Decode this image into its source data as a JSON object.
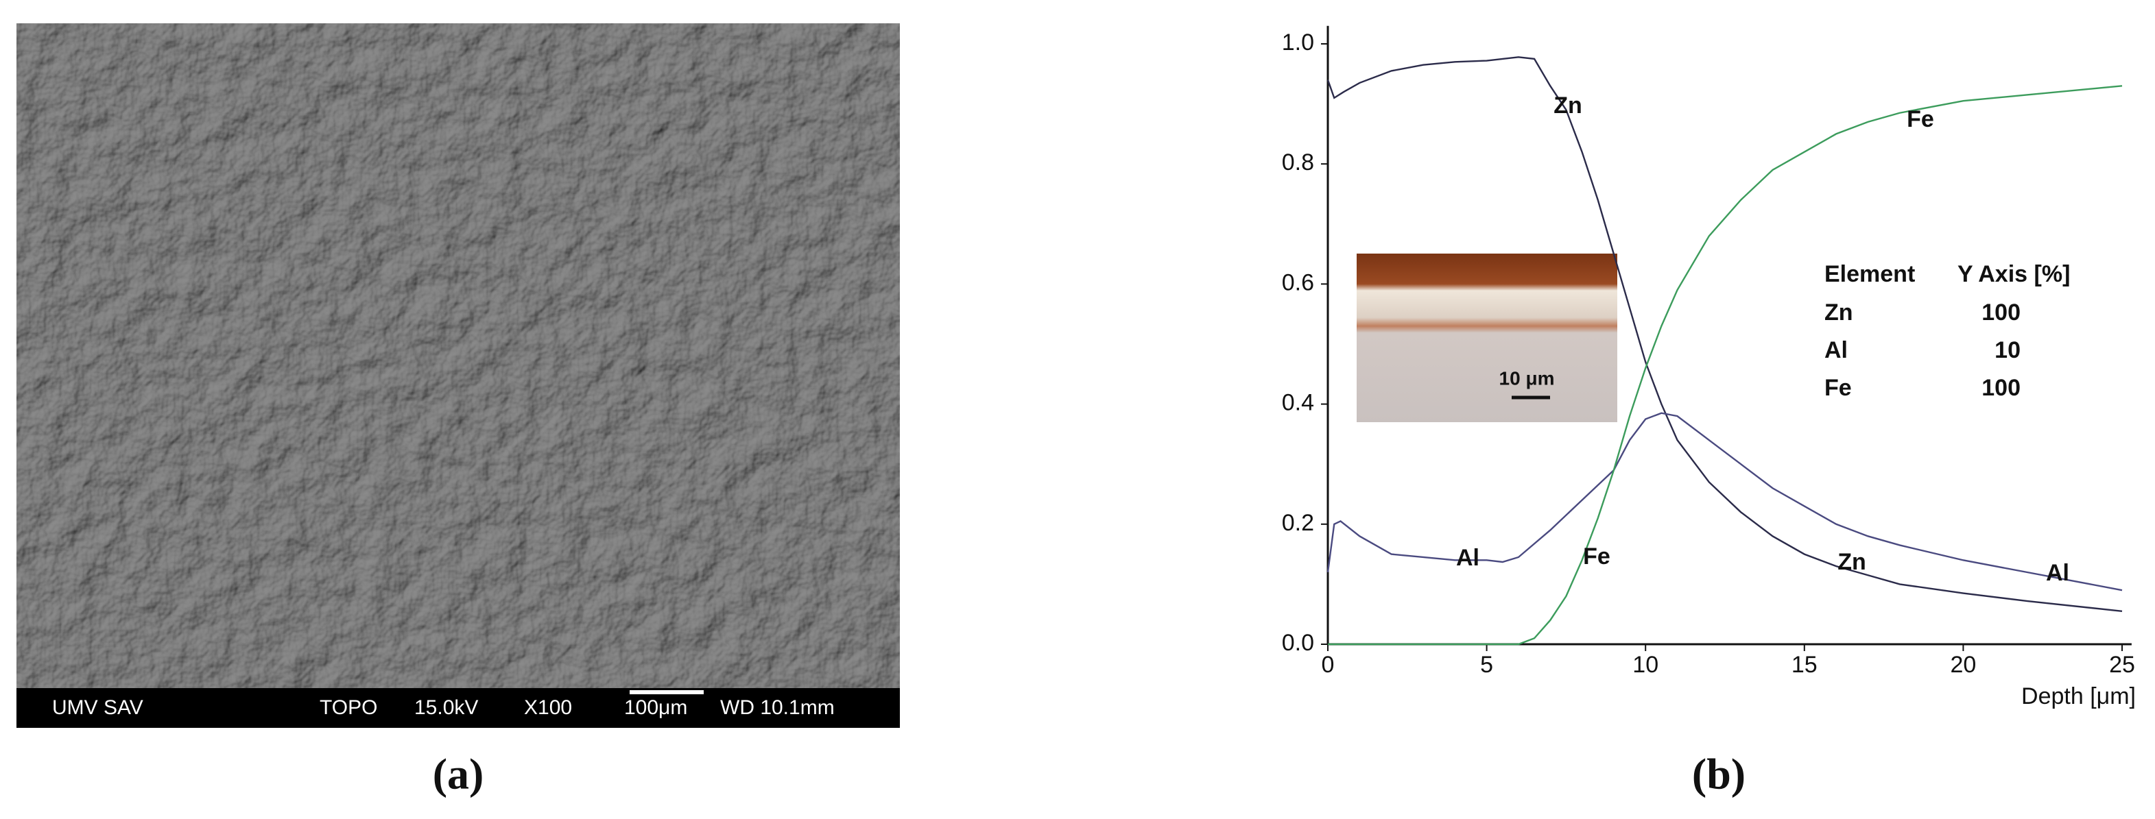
{
  "chart_data": {
    "type": "line",
    "xlabel": "Depth [μm]",
    "xlim": [
      0,
      25.3
    ],
    "ylim": [
      0,
      1.03
    ],
    "xticks": [
      0,
      5,
      10,
      15,
      20,
      25
    ],
    "yticks": [
      {
        "value": 0,
        "label": "0.0"
      },
      0.2,
      0.4,
      0.6,
      0.8,
      {
        "value": 1,
        "label": "1.0"
      }
    ],
    "series": [
      {
        "name": "Zn",
        "color": "#2b2b4a",
        "x": [
          0,
          0.2,
          0.5,
          1,
          2,
          3,
          4,
          5,
          6,
          6.5,
          7,
          7.5,
          8,
          8.5,
          9,
          9.5,
          10,
          10.5,
          11,
          12,
          13,
          14,
          15,
          16,
          17,
          18,
          20,
          22,
          25
        ],
        "values": [
          0.94,
          0.91,
          0.92,
          0.935,
          0.955,
          0.965,
          0.97,
          0.972,
          0.978,
          0.975,
          0.93,
          0.89,
          0.82,
          0.74,
          0.65,
          0.56,
          0.47,
          0.4,
          0.34,
          0.27,
          0.22,
          0.18,
          0.15,
          0.13,
          0.115,
          0.1,
          0.085,
          0.072,
          0.055
        ]
      },
      {
        "name": "Al",
        "color": "#4a4a80",
        "x": [
          0,
          0.2,
          0.4,
          1,
          2,
          3,
          4,
          5,
          5.5,
          6,
          7,
          8,
          9,
          9.5,
          10,
          10.5,
          11,
          12,
          13,
          14,
          15,
          16,
          17,
          18,
          20,
          22,
          25
        ],
        "values": [
          0.12,
          0.2,
          0.205,
          0.18,
          0.15,
          0.145,
          0.14,
          0.14,
          0.137,
          0.145,
          0.19,
          0.24,
          0.29,
          0.34,
          0.375,
          0.385,
          0.38,
          0.34,
          0.3,
          0.26,
          0.23,
          0.2,
          0.18,
          0.165,
          0.14,
          0.12,
          0.09
        ]
      },
      {
        "name": "Fe",
        "color": "#3c9c5c",
        "x": [
          0,
          6,
          6.5,
          7,
          7.5,
          8,
          8.5,
          9,
          9.5,
          10,
          10.5,
          11,
          12,
          13,
          14,
          15,
          16,
          17,
          18,
          20,
          22,
          25
        ],
        "values": [
          0,
          0,
          0.01,
          0.04,
          0.08,
          0.14,
          0.21,
          0.29,
          0.38,
          0.46,
          0.53,
          0.59,
          0.68,
          0.74,
          0.79,
          0.82,
          0.85,
          0.87,
          0.885,
          0.905,
          0.915,
          0.93
        ]
      }
    ],
    "annotations": [
      "Zn",
      "Fe",
      "Fe",
      "Al",
      "Zn",
      "Al"
    ],
    "legend_table": {
      "header": [
        "Element",
        "Y Axis [%]"
      ],
      "rows": [
        [
          "Zn",
          100
        ],
        [
          "Al",
          10
        ],
        [
          "Fe",
          100
        ]
      ]
    },
    "inset_scale_label": "10 μm"
  },
  "panel_a": {
    "label": "(a)",
    "info_bar": [
      "UMV SAV",
      "TOPO",
      "15.0kV",
      "X100",
      "100μm",
      "WD 10.1mm"
    ]
  },
  "panel_b": {
    "label": "(b)"
  }
}
